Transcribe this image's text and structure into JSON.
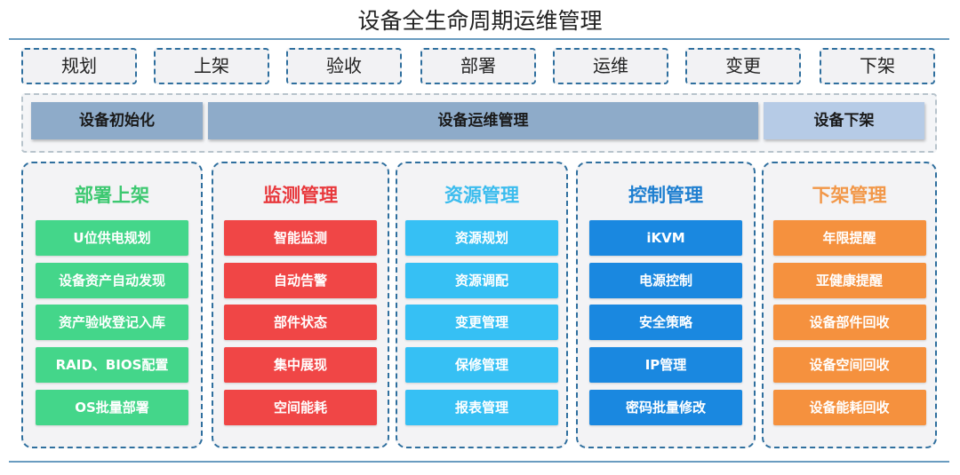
{
  "title": "设备全生命周期运维管理",
  "stages": [
    "规划",
    "上架",
    "验收",
    "部署",
    "运维",
    "变更",
    "下架"
  ],
  "phases": [
    {
      "label": "设备初始化",
      "color": "#8eabc9"
    },
    {
      "label": "设备运维管理",
      "color": "#8eabc9"
    },
    {
      "label": "设备下架",
      "color": "#b6cbe6"
    }
  ],
  "columns": [
    {
      "title": "部署上架",
      "title_color": "#3cc870",
      "item_color": "#44d68a",
      "items": [
        "U位供电规划",
        "设备资产自动发现",
        "资产验收登记入库",
        "RAID、BIOS配置",
        "OS批量部署"
      ]
    },
    {
      "title": "监测管理",
      "title_color": "#e8383c",
      "item_color": "#f04646",
      "items": [
        "智能监测",
        "自动告警",
        "部件状态",
        "集中展现",
        "空间能耗"
      ]
    },
    {
      "title": "资源管理",
      "title_color": "#3bbcee",
      "item_color": "#36c0f4",
      "items": [
        "资源规划",
        "资源调配",
        "变更管理",
        "保修管理",
        "报表管理"
      ]
    },
    {
      "title": "控制管理",
      "title_color": "#1e7fd0",
      "item_color": "#1a88e0",
      "items": [
        "iKVM",
        "电源控制",
        "安全策略",
        "IP管理",
        "密码批量修改"
      ]
    },
    {
      "title": "下架管理",
      "title_color": "#f29748",
      "item_color": "#f5913e",
      "items": [
        "年限提醒",
        "亚健康提醒",
        "设备部件回收",
        "设备空间回收",
        "设备能耗回收"
      ]
    }
  ]
}
